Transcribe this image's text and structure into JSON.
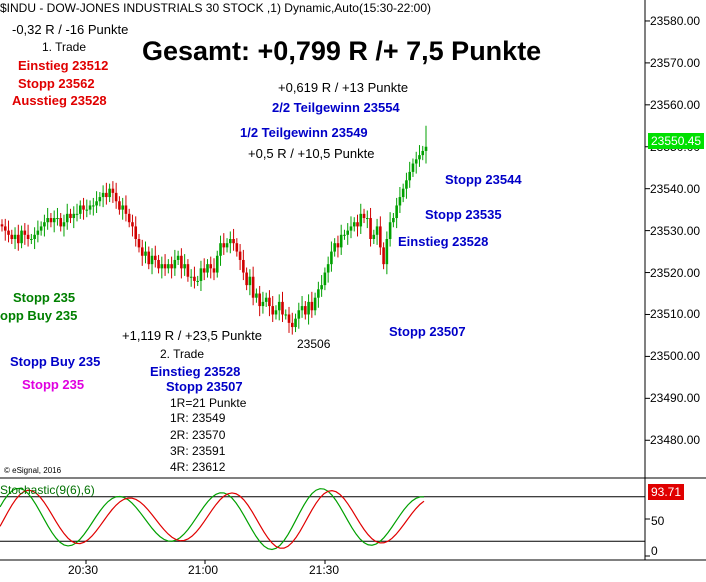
{
  "header": {
    "title": "$INDU - DOW-JONES INDUSTRIALS 30 STOCK ,1) Dynamic,Auto(15:30-22:00)",
    "credit": "© eSignal, 2016"
  },
  "headline": "Gesamt: +0,799 R /+ 7,5 Punkte",
  "trade1": {
    "result": "-0,32 R / -16 Punkte",
    "name": "1. Trade",
    "entry": "Einstieg 23512",
    "stop": "Stopp 23562",
    "exit": "Ausstieg 23528"
  },
  "trade2": {
    "result": "+1,119 R / +23,5 Punkte",
    "name": "2. Trade",
    "entry": "Einstieg 23528",
    "stop": "Stopp 23507",
    "r_def": "1R=21 Punkte",
    "targets": [
      "1R: 23549",
      "2R: 23570",
      "3R: 23591",
      "4R: 23612"
    ]
  },
  "annotations": {
    "r_half": "+0,619 R / +13 Punkte",
    "partial2": "2/2 Teilgewinn 23554",
    "partial1": "1/2 Teilgewinn 23549",
    "r_first": "+0,5 R / +10,5 Punkte",
    "stop_23544": "Stopp 23544",
    "stop_23535": "Stopp 23535",
    "entry_23528": "Einstieg 23528",
    "stop_23507": "Stopp 23507",
    "low_label": "23506",
    "left_stopp_235": "Stopp 235",
    "left_stopp_buy_235_green": "opp Buy 235",
    "left_stopp_buy_235_blue": "Stopp Buy 235",
    "left_stopp_235_magenta": "Stopp 235"
  },
  "indicator": {
    "name": "Stochastic(9(6),6)",
    "value": "93.71",
    "ticks": [
      "50",
      "0"
    ]
  },
  "chart_data": {
    "type": "candlestick",
    "title": "$INDU - DOW-JONES INDUSTRIALS 30 STOCK ,1) Dynamic,Auto(15:30-22:00)",
    "ylim": [
      23471,
      23585
    ],
    "y_ticks": [
      23480,
      23490,
      23500,
      23510,
      23520,
      23530,
      23540,
      23550,
      23560,
      23570,
      23580
    ],
    "x_tick_labels": [
      "20:30",
      "21:00",
      "21:30"
    ],
    "last_price": "23550.45",
    "candles_close": [
      23531,
      23530,
      23529,
      23528,
      23529,
      23527,
      23530,
      23529,
      23528,
      23528,
      23529,
      23530,
      23531,
      23532,
      23533,
      23532,
      23533,
      23533,
      23531,
      23532,
      23534,
      23533,
      23534,
      23534,
      23536,
      23535,
      23535,
      23536,
      23536,
      23537,
      23538,
      23539,
      23538,
      23540,
      23539,
      23537,
      23535,
      23536,
      23534,
      23532,
      23531,
      23528,
      23526,
      23524,
      23525,
      23522,
      23524,
      23523,
      23521,
      23522,
      23521,
      23522,
      23521,
      23523,
      23524,
      23521,
      23522,
      23519,
      23519,
      23518,
      23518,
      23521,
      23520,
      23522,
      23521,
      23520,
      23524,
      23527,
      23526,
      23527,
      23528,
      23527,
      23525,
      23523,
      23520,
      23517,
      23519,
      23514,
      23515,
      23512,
      23513,
      23514,
      23512,
      23510,
      23511,
      23513,
      23510,
      23510,
      23508,
      23507,
      23509,
      23511,
      23512,
      23510,
      23513,
      23511,
      23514,
      23516,
      23517,
      23520,
      23522,
      23525,
      23527,
      23526,
      23529,
      23529,
      23530,
      23531,
      23532,
      23531,
      23534,
      23533,
      23533,
      23528,
      23529,
      23531,
      23526,
      23522,
      23528,
      23532,
      23533,
      23536,
      23538,
      23540,
      23542,
      23544,
      23546,
      23547,
      23548,
      23549,
      23550
    ]
  }
}
